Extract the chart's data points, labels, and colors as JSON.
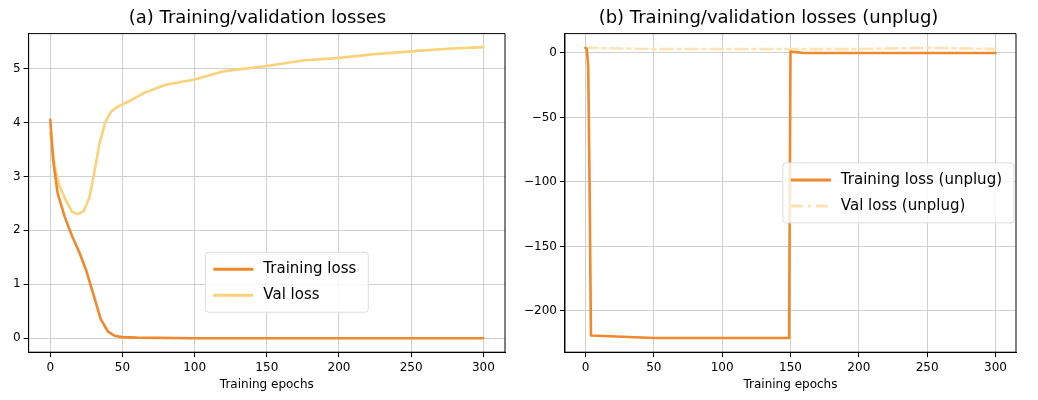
{
  "chart_data": [
    {
      "type": "line",
      "title": "(a) Training/validation losses",
      "xlabel": "Training epochs",
      "xlim": [
        -15,
        315
      ],
      "xticks": [
        0,
        50,
        100,
        150,
        200,
        250,
        300
      ],
      "ylim": [
        -0.26,
        5.65
      ],
      "yticks": [
        0,
        1,
        2,
        3,
        4,
        5
      ],
      "grid": true,
      "legend": "bottom",
      "series": [
        {
          "name": "Training loss",
          "color": "#f0892c",
          "line_style": "solid",
          "x": [
            0,
            2,
            5,
            10,
            15,
            20,
            25,
            30,
            35,
            40,
            45,
            50,
            60,
            100,
            200,
            300
          ],
          "values": [
            4.05,
            3.3,
            2.7,
            2.25,
            1.9,
            1.6,
            1.25,
            0.8,
            0.35,
            0.12,
            0.04,
            0.02,
            0.01,
            0,
            0,
            0
          ]
        },
        {
          "name": "Val loss",
          "color": "#fdd17a",
          "line_style": "solid",
          "x": [
            0,
            3,
            6,
            10,
            15,
            19,
            23,
            27,
            30,
            34,
            38,
            42,
            47,
            55,
            65,
            80,
            100,
            120,
            150,
            175,
            200,
            225,
            250,
            275,
            300
          ],
          "values": [
            3.8,
            3.2,
            2.85,
            2.6,
            2.35,
            2.3,
            2.35,
            2.6,
            3.0,
            3.6,
            4.0,
            4.2,
            4.3,
            4.4,
            4.55,
            4.7,
            4.8,
            4.95,
            5.05,
            5.15,
            5.2,
            5.27,
            5.32,
            5.37,
            5.4
          ]
        }
      ]
    },
    {
      "type": "line",
      "title": "(b) Training/validation losses (unplug)",
      "xlabel": "Training epochs",
      "xlim": [
        -15,
        315
      ],
      "xticks": [
        0,
        50,
        100,
        150,
        200,
        250,
        300
      ],
      "ylim": [
        -232,
        15
      ],
      "yticks": [
        -200,
        -150,
        -100,
        -50,
        0
      ],
      "grid": true,
      "legend": "center right",
      "series": [
        {
          "name": "Training loss (unplug)",
          "color": "#f0892c",
          "line_style": "solid",
          "x": [
            0,
            1,
            2,
            3,
            4,
            50,
            100,
            149,
            150,
            160,
            300
          ],
          "values": [
            4,
            3,
            -10,
            -100,
            -219,
            -221,
            -221,
            -221,
            1,
            0,
            0
          ]
        },
        {
          "name": "Val loss (unplug)",
          "color": "#fde4b4",
          "line_style": "dashed",
          "x": [
            0,
            50,
            100,
            150,
            200,
            250,
            300
          ],
          "values": [
            4,
            3,
            3,
            3,
            3,
            4,
            3
          ]
        }
      ]
    }
  ]
}
